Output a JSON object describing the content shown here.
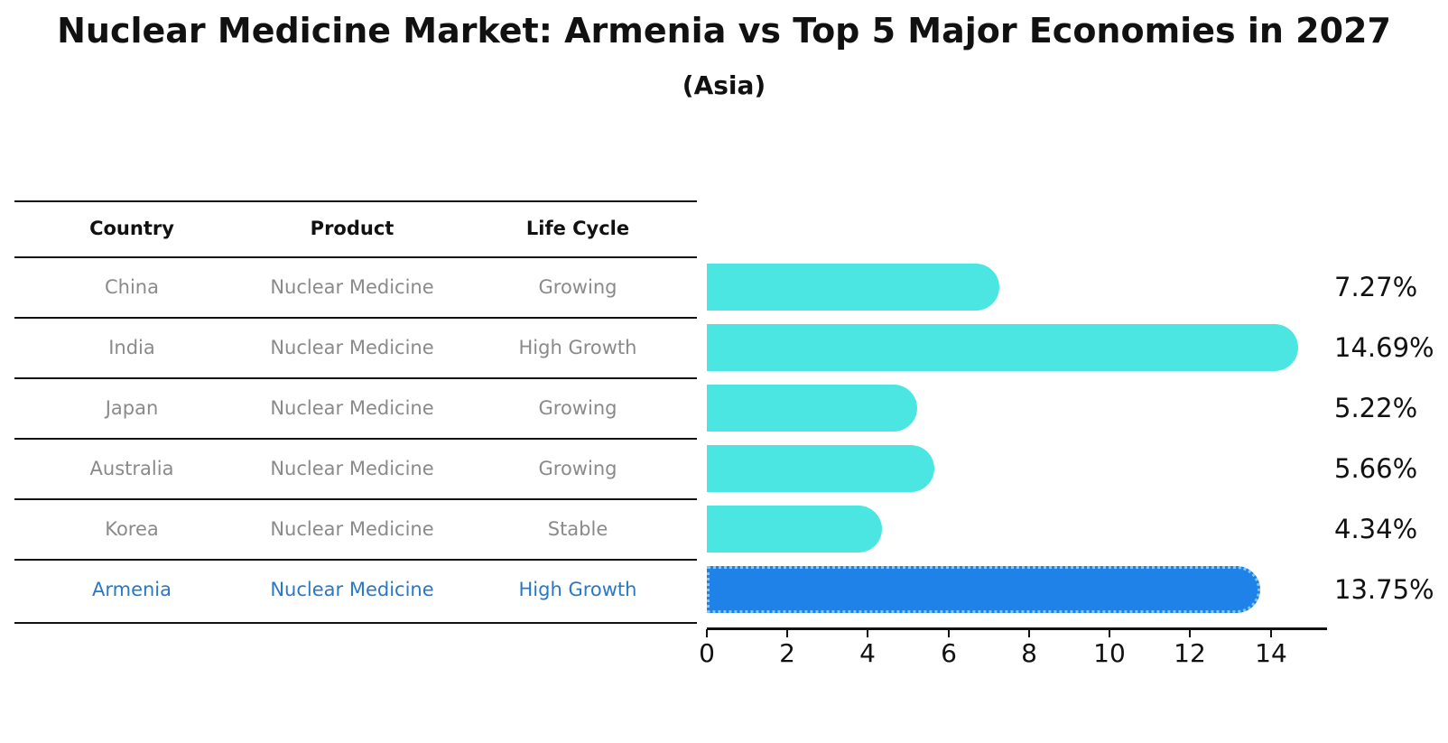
{
  "title": "Nuclear Medicine Market: Armenia vs Top 5 Major Economies in 2027",
  "subtitle": "(Asia)",
  "table": {
    "headers": {
      "country": "Country",
      "product": "Product",
      "life_cycle": "Life Cycle"
    },
    "rows": [
      {
        "country": "China",
        "product": "Nuclear Medicine",
        "life_cycle": "Growing",
        "highlight": false
      },
      {
        "country": "India",
        "product": "Nuclear Medicine",
        "life_cycle": "High Growth",
        "highlight": false
      },
      {
        "country": "Japan",
        "product": "Nuclear Medicine",
        "life_cycle": "Growing",
        "highlight": false
      },
      {
        "country": "Australia",
        "product": "Nuclear Medicine",
        "life_cycle": "Growing",
        "highlight": false
      },
      {
        "country": "Korea",
        "product": "Nuclear Medicine",
        "life_cycle": "Stable",
        "highlight": false
      },
      {
        "country": "Armenia",
        "product": "Nuclear Medicine",
        "life_cycle": "High Growth",
        "highlight": true
      }
    ]
  },
  "chart_data": {
    "type": "bar",
    "orientation": "horizontal",
    "title": "Nuclear Medicine Market: Armenia vs Top 5 Major Economies in 2027 (Asia)",
    "categories": [
      "China",
      "India",
      "Japan",
      "Australia",
      "Korea",
      "Armenia"
    ],
    "values": [
      7.27,
      14.69,
      5.22,
      5.66,
      4.34,
      13.75
    ],
    "value_labels": [
      "7.27%",
      "14.69%",
      "5.22%",
      "5.66%",
      "4.34%",
      "13.75%"
    ],
    "unit": "%",
    "xtick_labels": [
      "0",
      "2",
      "4",
      "6",
      "8",
      "10",
      "12",
      "14"
    ],
    "xtick_values": [
      0,
      2,
      4,
      6,
      8,
      10,
      12,
      14
    ],
    "xlim": [
      0,
      15.4
    ],
    "highlight_index": 5,
    "grid": false,
    "legend": "none"
  },
  "colors": {
    "bar": "#4be6e2",
    "highlight_bar": "#1e82e8",
    "highlight_edge": "#86c5f4",
    "highlight_text": "#2878c8",
    "table_text": "#8a8a8a",
    "axis_text": "#111111",
    "title_text": "#111111"
  }
}
